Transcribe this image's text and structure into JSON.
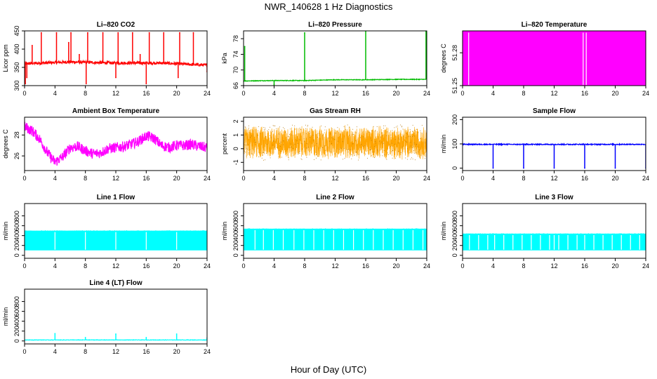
{
  "title": "NWR_140628  1 Hz Diagnostics",
  "xlabel": "Hour of Day (UTC)",
  "chart_data": [
    {
      "id": "co2",
      "type": "line",
      "title": "Li–820 CO2",
      "ylabel": "Licor ppm",
      "color": "#ff0000",
      "xlim": [
        0,
        24
      ],
      "ylim": [
        300,
        450
      ],
      "xticks": [
        0,
        4,
        8,
        12,
        16,
        20,
        24
      ],
      "yticks": [
        300,
        350,
        400,
        450
      ],
      "baseline": [
        [
          0,
          360
        ],
        [
          6,
          365
        ],
        [
          12,
          362
        ],
        [
          18,
          362
        ],
        [
          24,
          356
        ]
      ],
      "noise": 4,
      "spikes": [
        {
          "x": 0.1,
          "y": 305
        },
        {
          "x": 0.3,
          "y": 322
        },
        {
          "x": 1.0,
          "y": 410
        },
        {
          "x": 2.2,
          "y": 445
        },
        {
          "x": 4.2,
          "y": 445
        },
        {
          "x": 5.8,
          "y": 418
        },
        {
          "x": 6.1,
          "y": 445
        },
        {
          "x": 7.2,
          "y": 385
        },
        {
          "x": 8.1,
          "y": 305
        },
        {
          "x": 8.3,
          "y": 445
        },
        {
          "x": 10.3,
          "y": 445
        },
        {
          "x": 12.0,
          "y": 322
        },
        {
          "x": 12.3,
          "y": 445
        },
        {
          "x": 14.2,
          "y": 445
        },
        {
          "x": 15.2,
          "y": 385
        },
        {
          "x": 16.0,
          "y": 305
        },
        {
          "x": 16.4,
          "y": 445
        },
        {
          "x": 18.3,
          "y": 445
        },
        {
          "x": 20.2,
          "y": 322
        },
        {
          "x": 20.4,
          "y": 445
        },
        {
          "x": 22.2,
          "y": 445
        },
        {
          "x": 24.0,
          "y": 338
        }
      ]
    },
    {
      "id": "pressure",
      "type": "line",
      "title": "Li–820 Pressure",
      "ylabel": "kPa",
      "color": "#00bb00",
      "xlim": [
        0,
        24
      ],
      "ylim": [
        66,
        80
      ],
      "xticks": [
        0,
        4,
        8,
        12,
        16,
        20,
        24
      ],
      "yticks": [
        66,
        70,
        74,
        78
      ],
      "baseline": [
        [
          0,
          67.2
        ],
        [
          4,
          67.3
        ],
        [
          8,
          67.3
        ],
        [
          12,
          67.5
        ],
        [
          16,
          67.5
        ],
        [
          20,
          67.6
        ],
        [
          24,
          67.6
        ]
      ],
      "noise": 0.08,
      "spikes": [
        {
          "x": 0.15,
          "y": 76
        },
        {
          "x": 4.0,
          "y": 66.2
        },
        {
          "x": 8.0,
          "y": 79.5
        },
        {
          "x": 16.0,
          "y": 80
        },
        {
          "x": 23.9,
          "y": 80
        }
      ]
    },
    {
      "id": "licor_temp",
      "type": "band",
      "title": "Li–820 Temperature",
      "ylabel": "degrees C",
      "color": "#ff00ff",
      "xlim": [
        0,
        24
      ],
      "ylim": [
        51.25,
        51.3
      ],
      "xticks": [
        0,
        4,
        8,
        12,
        16,
        20,
        24
      ],
      "yticks": [
        51.25,
        51.28
      ],
      "band_low": 51.25,
      "band_high": 51.2997,
      "gaps": [
        0.8,
        15.8,
        16.2
      ]
    },
    {
      "id": "ambient_temp",
      "type": "line",
      "title": "Ambient Box Temperature",
      "ylabel": "degrees C",
      "color": "#ff00ff",
      "xlim": [
        0,
        24
      ],
      "ylim": [
        24.6,
        29.7
      ],
      "xticks": [
        0,
        4,
        8,
        12,
        16,
        20,
        24
      ],
      "yticks": [
        26,
        28
      ],
      "baseline": [
        [
          0,
          28.8
        ],
        [
          1,
          28.4
        ],
        [
          2,
          27.6
        ],
        [
          3,
          26.3
        ],
        [
          4,
          25.4
        ],
        [
          5,
          25.9
        ],
        [
          6,
          26.8
        ],
        [
          7,
          26.9
        ],
        [
          8,
          26.5
        ],
        [
          9,
          26.2
        ],
        [
          10,
          26.3
        ],
        [
          11,
          26.7
        ],
        [
          12,
          26.8
        ],
        [
          13,
          26.9
        ],
        [
          14,
          27.1
        ],
        [
          15,
          27.4
        ],
        [
          16,
          27.9
        ],
        [
          17,
          27.7
        ],
        [
          18,
          27.0
        ],
        [
          19,
          26.8
        ],
        [
          20,
          27.0
        ],
        [
          21,
          27.0
        ],
        [
          22,
          27.1
        ],
        [
          23,
          26.9
        ],
        [
          24,
          26.8
        ]
      ],
      "noise": 0.5
    },
    {
      "id": "rh",
      "type": "noise",
      "title": "Gas Stream RH",
      "ylabel": "percent",
      "color": "#ffa500",
      "xlim": [
        0,
        24
      ],
      "ylim": [
        -1.6,
        2.3
      ],
      "xticks": [
        0,
        4,
        8,
        12,
        16,
        20,
        24
      ],
      "yticks": [
        -1,
        0,
        1,
        2
      ],
      "center": 0.45,
      "amplitude": 1.3
    },
    {
      "id": "sample_flow",
      "type": "line",
      "title": "Sample Flow",
      "ylabel": "ml/min",
      "color": "#0000ff",
      "xlim": [
        0,
        24
      ],
      "ylim": [
        -10,
        210
      ],
      "xticks": [
        0,
        4,
        8,
        12,
        16,
        20,
        24
      ],
      "yticks": [
        0,
        100,
        200
      ],
      "baseline": [
        [
          0,
          98
        ],
        [
          24,
          98
        ]
      ],
      "noise": 2,
      "spikes": [
        {
          "x": 4.0,
          "y": 0
        },
        {
          "x": 8.0,
          "y": 0
        },
        {
          "x": 12.0,
          "y": 0
        },
        {
          "x": 16.0,
          "y": 0
        },
        {
          "x": 20.0,
          "y": 0
        },
        {
          "x": 24.0,
          "y": 0
        }
      ]
    },
    {
      "id": "line1",
      "type": "band",
      "title": "Line 1 Flow",
      "ylabel": "ml/min",
      "color": "#00ffff",
      "xlim": [
        0,
        24
      ],
      "ylim": [
        -60,
        1050
      ],
      "xticks": [
        0,
        4,
        8,
        12,
        16,
        20,
        24
      ],
      "yticks": [
        0,
        200,
        400,
        600,
        800
      ],
      "band_low": 100,
      "band_high": 500,
      "gaps": [
        4.0,
        8.0,
        12.0,
        16.0,
        20.0
      ]
    },
    {
      "id": "line2",
      "type": "band",
      "title": "Line 2 Flow",
      "ylabel": "ml/min",
      "color": "#00ffff",
      "xlim": [
        0,
        24
      ],
      "ylim": [
        -60,
        1050
      ],
      "xticks": [
        0,
        4,
        8,
        12,
        16,
        20,
        24
      ],
      "yticks": [
        0,
        200,
        400,
        600,
        800
      ],
      "band_low": 100,
      "band_high": 540,
      "gaps": [
        1.5,
        2.6,
        3.9,
        5.2,
        6.6,
        7.9,
        9.2,
        10.5,
        11.8,
        13.1,
        14.4,
        15.7,
        17.0,
        18.3,
        19.6,
        20.9,
        22.2,
        23.5
      ]
    },
    {
      "id": "line3",
      "type": "band",
      "title": "Line 3 Flow",
      "ylabel": "ml/min",
      "color": "#00ffff",
      "xlim": [
        0,
        24
      ],
      "ylim": [
        -60,
        1050
      ],
      "xticks": [
        0,
        4,
        8,
        12,
        16,
        20,
        24
      ],
      "yticks": [
        0,
        200,
        400,
        600,
        800
      ],
      "band_low": 100,
      "band_high": 440,
      "gaps": [
        0.9,
        2.1,
        3.3,
        4.2,
        5.4,
        6.6,
        7.8,
        9.0,
        10.2,
        11.4,
        12.0,
        12.6,
        13.8,
        15.0,
        16.0,
        17.2,
        18.4,
        19.6,
        20.8,
        22.0,
        23.2
      ]
    },
    {
      "id": "line4",
      "type": "line",
      "title": "Line 4 (LT) Flow",
      "ylabel": "ml/min",
      "color": "#00ffff",
      "xlim": [
        0,
        24
      ],
      "ylim": [
        -60,
        1050
      ],
      "xticks": [
        0,
        4,
        8,
        12,
        16,
        20,
        24
      ],
      "yticks": [
        0,
        200,
        400,
        600,
        800
      ],
      "baseline": [
        [
          0,
          20
        ],
        [
          24,
          20
        ]
      ],
      "noise": 4,
      "spikes": [
        {
          "x": 4.0,
          "y": 150
        },
        {
          "x": 8.0,
          "y": 70
        },
        {
          "x": 12.0,
          "y": 140
        },
        {
          "x": 16.0,
          "y": 70
        },
        {
          "x": 20.0,
          "y": 140
        },
        {
          "x": 24.0,
          "y": 60
        }
      ]
    }
  ]
}
